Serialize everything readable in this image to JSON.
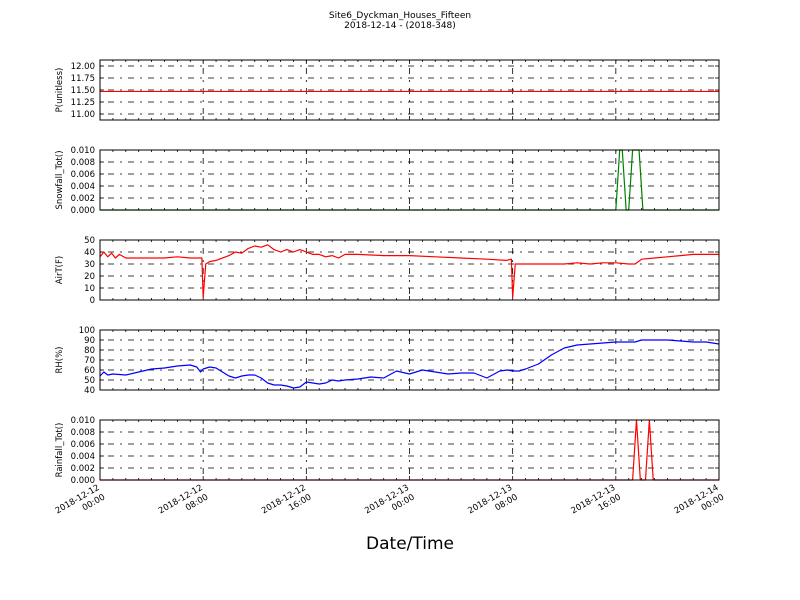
{
  "chart_data": {
    "title": "Site6_Dyckman_Houses_Fifteen",
    "subtitle": "2018-12-14 - (2018-348)",
    "xlabel": "Date/Time",
    "x_ticks": [
      {
        "t": 0,
        "line1": "2018-12-12",
        "line2": "00:00"
      },
      {
        "t": 8,
        "line1": "2018-12-12",
        "line2": "08:00"
      },
      {
        "t": 16,
        "line1": "2018-12-12",
        "line2": "16:00"
      },
      {
        "t": 24,
        "line1": "2018-12-13",
        "line2": "00:00"
      },
      {
        "t": 32,
        "line1": "2018-12-13",
        "line2": "08:00"
      },
      {
        "t": 40,
        "line1": "2018-12-13",
        "line2": "16:00"
      },
      {
        "t": 48,
        "line1": "2018-12-14",
        "line2": "00:00"
      }
    ],
    "x_range": [
      "2018-12-12 00:00",
      "2018-12-14 00:00"
    ],
    "grid": true,
    "panels": [
      {
        "type": "line",
        "ylabel": "P(unitless)",
        "ylim": [
          10.875,
          12.125
        ],
        "yticks": [
          11.0,
          11.25,
          11.5,
          11.75,
          12.0
        ],
        "ytick_labels": [
          "11.00",
          "11.25",
          "11.50",
          "11.75",
          "12.00"
        ],
        "color": "#ff0000",
        "x": [
          0,
          48
        ],
        "y": [
          11.47,
          11.47
        ]
      },
      {
        "type": "line",
        "ylabel": "Snowfall_Tot()",
        "ylim": [
          0,
          0.01
        ],
        "yticks": [
          0,
          0.002,
          0.004,
          0.006,
          0.008,
          0.01
        ],
        "ytick_labels": [
          "0.000",
          "0.002",
          "0.004",
          "0.006",
          "0.008",
          "0.010"
        ],
        "color": "#008000",
        "x": [
          0,
          40.0,
          40.3,
          40.5,
          40.8,
          41.0,
          41.3,
          41.5,
          41.8,
          42.1,
          48
        ],
        "y": [
          0,
          0,
          0.01,
          0.01,
          0,
          0,
          0.01,
          0.01,
          0.01,
          0,
          0
        ]
      },
      {
        "type": "line",
        "ylabel": "AirT(F)",
        "ylim": [
          0,
          50
        ],
        "yticks": [
          0,
          10,
          20,
          30,
          40,
          50
        ],
        "ytick_labels": [
          "0",
          "10",
          "20",
          "30",
          "40",
          "50"
        ],
        "color": "#ff0000",
        "x": [
          0,
          0.3,
          0.6,
          0.9,
          1.2,
          1.5,
          2,
          3,
          4,
          5,
          6,
          7,
          7.6,
          7.9,
          8.0,
          8.2,
          8.5,
          9,
          10,
          10.5,
          11,
          11.5,
          12,
          12.5,
          13,
          13.5,
          14,
          14.5,
          15,
          15.5,
          16,
          16.5,
          17,
          17.5,
          18,
          18.5,
          19,
          20,
          22,
          24,
          26,
          28,
          30,
          31.5,
          31.9,
          32.0,
          32.2,
          32.5,
          33,
          34,
          35,
          36,
          37,
          38,
          39,
          40,
          41,
          41.5,
          42,
          43,
          44,
          45,
          46,
          47,
          48
        ],
        "y": [
          36,
          40,
          36,
          39,
          35,
          38,
          35,
          35,
          35,
          35,
          36,
          35,
          35,
          35,
          2,
          30,
          32,
          33,
          37,
          40,
          39,
          43,
          45,
          44,
          46,
          42,
          40,
          42,
          40,
          42,
          40,
          38,
          38,
          36,
          37,
          35,
          38,
          38,
          37,
          37,
          36,
          35,
          34,
          33,
          34,
          2,
          30,
          30,
          30,
          30,
          30,
          30,
          31,
          30,
          31,
          31,
          30,
          30,
          34,
          35,
          36,
          37,
          38,
          38,
          38
        ]
      },
      {
        "type": "line",
        "ylabel": "RH(%)",
        "ylim": [
          40,
          100
        ],
        "yticks": [
          40,
          50,
          60,
          70,
          80,
          90,
          100
        ],
        "ytick_labels": [
          "40",
          "50",
          "60",
          "70",
          "80",
          "90",
          "100"
        ],
        "color": "#0000ff",
        "x": [
          0,
          0.3,
          0.6,
          1,
          2,
          3,
          4,
          5,
          6,
          7,
          7.5,
          7.8,
          8,
          8.5,
          9,
          9.5,
          10,
          10.5,
          11,
          11.5,
          12,
          12.5,
          13,
          13.5,
          14,
          14.5,
          15,
          15.5,
          16,
          16.5,
          17,
          17.5,
          18,
          18.5,
          19,
          20,
          21,
          22,
          23,
          24,
          25,
          26,
          27,
          28,
          29,
          30,
          31,
          31.6,
          32,
          32.5,
          33,
          34,
          35,
          36,
          37,
          38,
          39,
          40,
          41,
          41.5,
          42,
          43,
          44,
          45,
          46,
          47,
          48
        ],
        "y": [
          54,
          58,
          55,
          56,
          55,
          58,
          61,
          62,
          64,
          65,
          63,
          58,
          61,
          63,
          62,
          58,
          54,
          52,
          54,
          55,
          55,
          52,
          47,
          45,
          45,
          44,
          42,
          43,
          48,
          47,
          46,
          47,
          50,
          49,
          50,
          51,
          53,
          52,
          59,
          56,
          60,
          58,
          56,
          57,
          57,
          52,
          59,
          60,
          59,
          59,
          61,
          66,
          75,
          82,
          85,
          86,
          87,
          88,
          88,
          88,
          90,
          90,
          90,
          89,
          88,
          88,
          86
        ]
      },
      {
        "type": "line",
        "ylabel": "Rainfall_Tot()",
        "ylim": [
          0,
          0.01
        ],
        "yticks": [
          0,
          0.002,
          0.004,
          0.006,
          0.008,
          0.01
        ],
        "ytick_labels": [
          "0.000",
          "0.002",
          "0.004",
          "0.006",
          "0.008",
          "0.010"
        ],
        "color": "#ff0000",
        "x": [
          0,
          41.3,
          41.6,
          41.9,
          42.3,
          42.6,
          42.9,
          48
        ],
        "y": [
          0,
          0,
          0.01,
          0,
          0,
          0.01,
          0,
          0
        ]
      }
    ]
  }
}
